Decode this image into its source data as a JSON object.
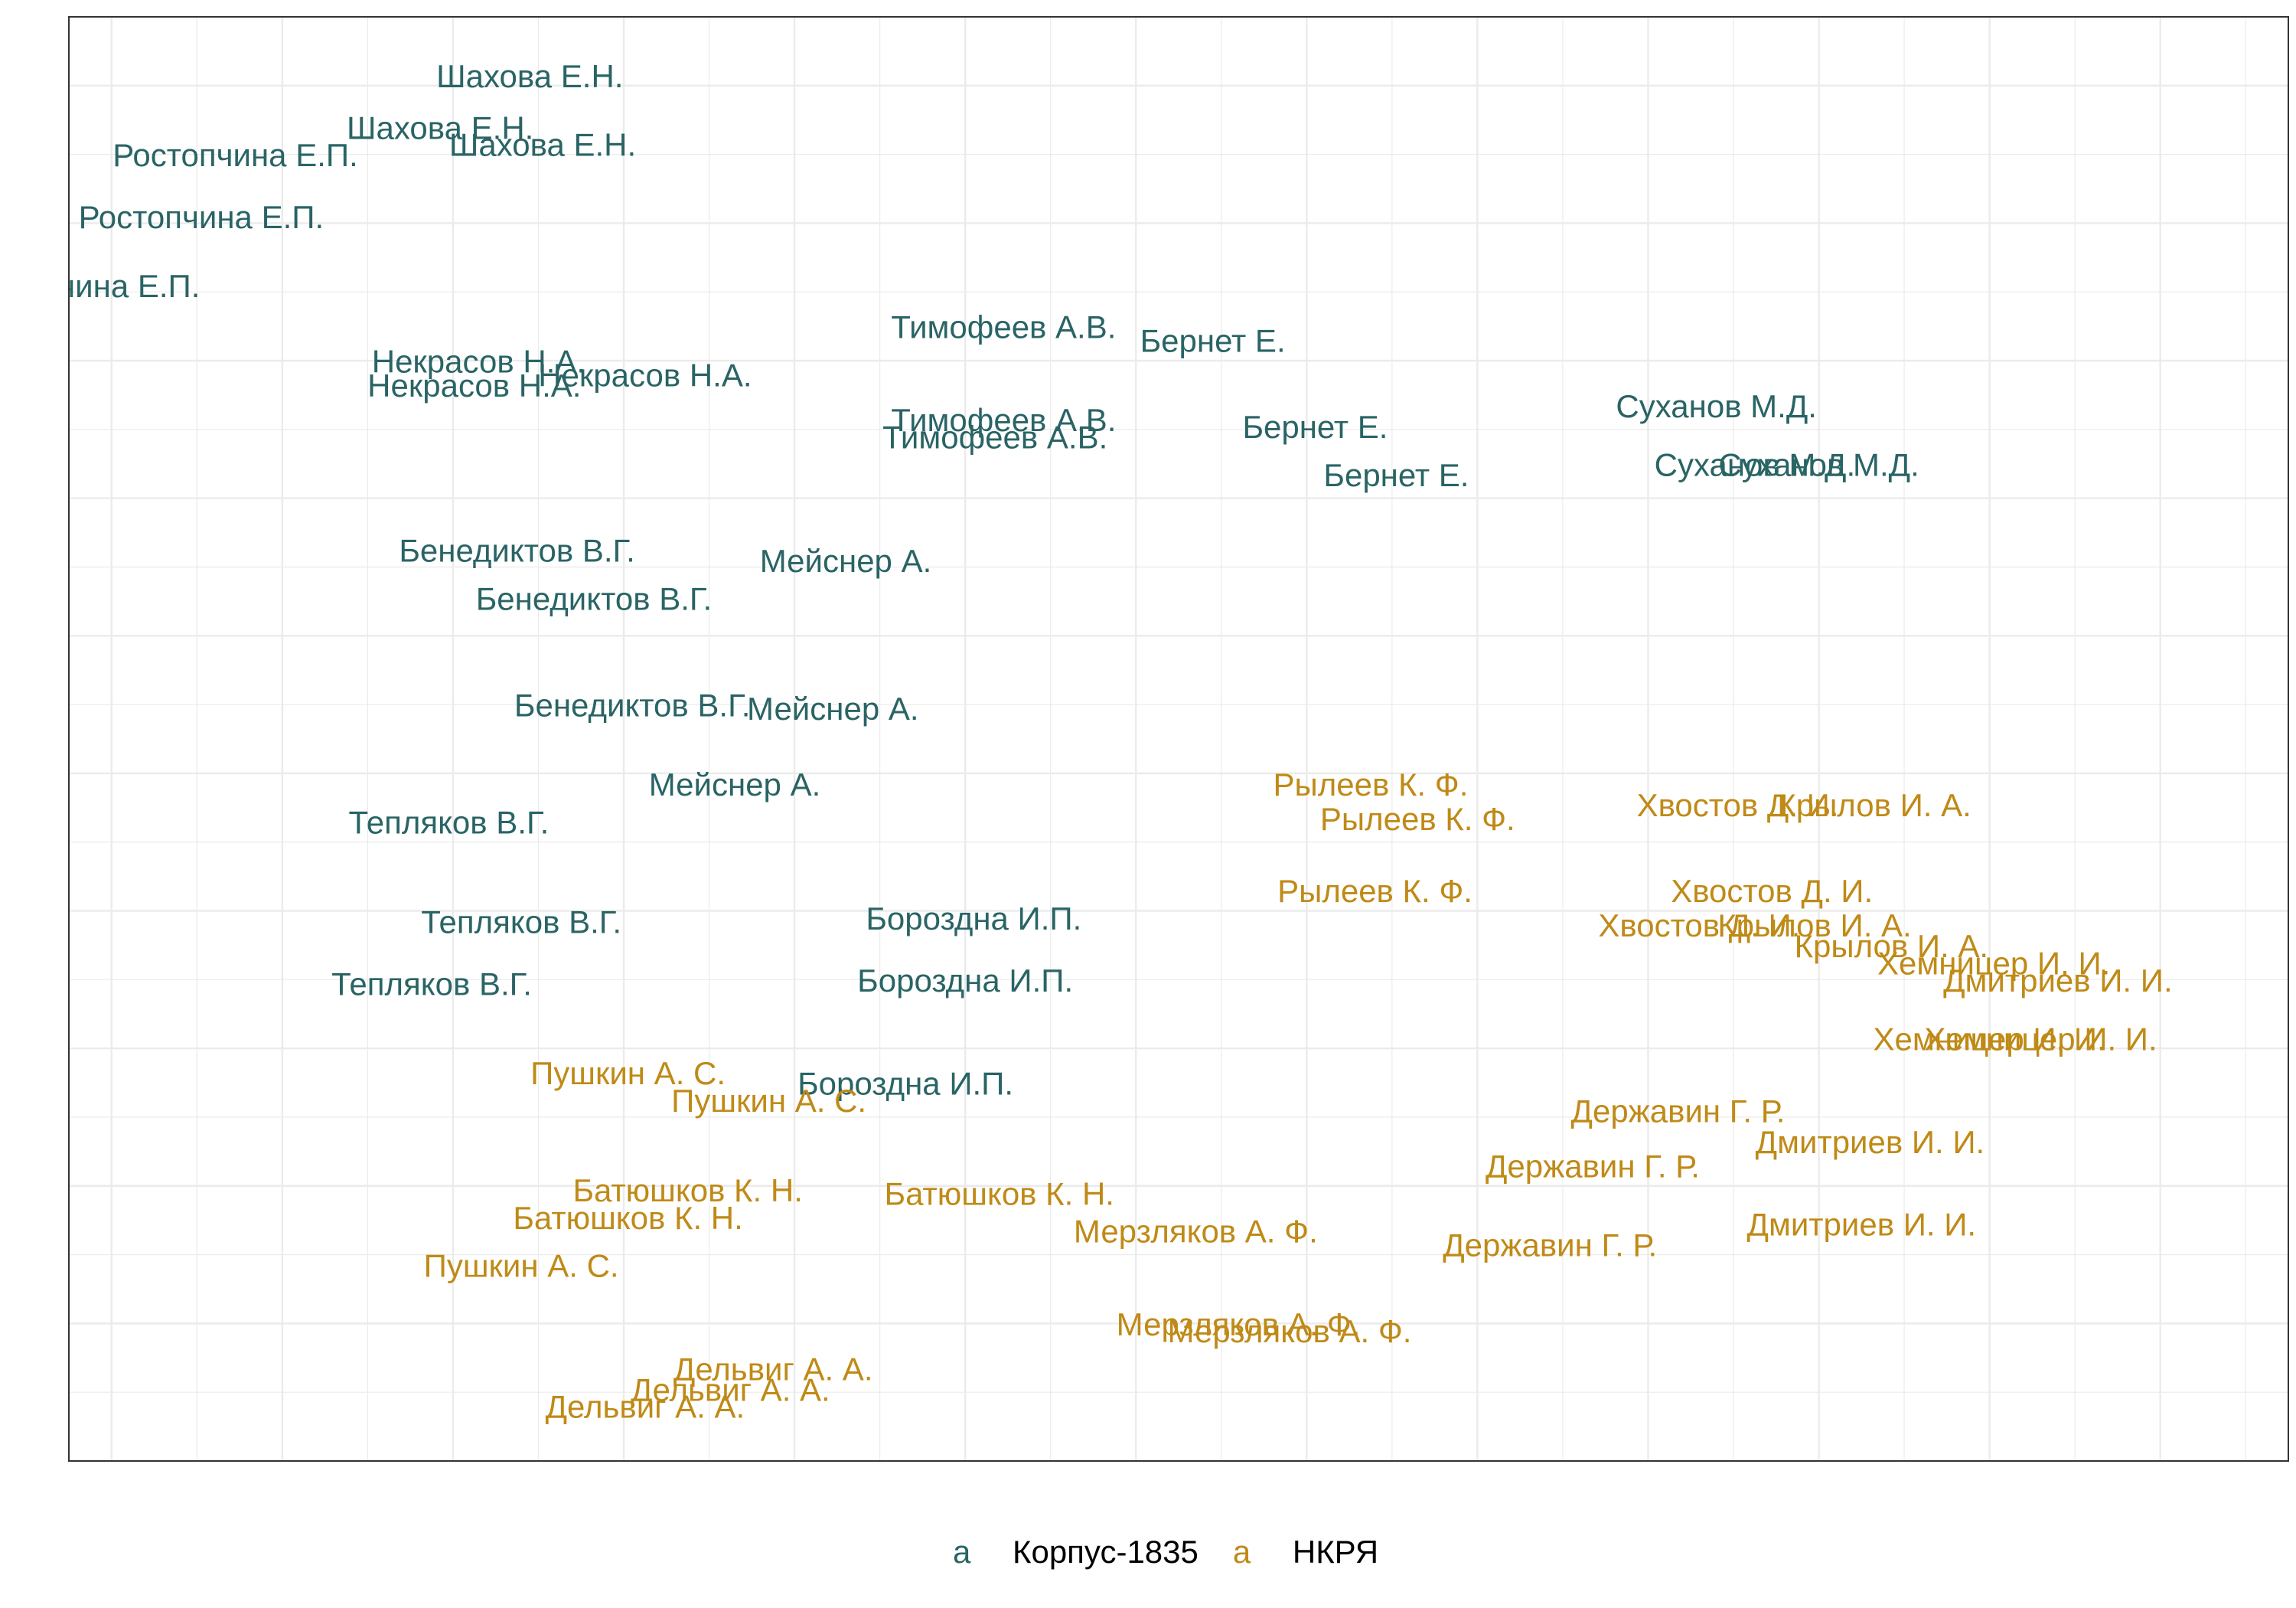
{
  "chart_data": {
    "type": "scatter",
    "title": "",
    "xlabel": "",
    "ylabel": "",
    "xlim": [
      -0.5,
      25.5
    ],
    "ylim": [
      0,
      21
    ],
    "grid": true,
    "legend_position": "bottom",
    "legend_key_glyph": "a",
    "series": [
      {
        "name": "Корпус-1835",
        "color": "#2a6465",
        "points": [
          {
            "label": "Шахова Е.Н.",
            "x": 4.9,
            "y": 20.1
          },
          {
            "label": "Шахова Е.Н.",
            "x": 3.85,
            "y": 19.35
          },
          {
            "label": "Шахова Е.Н.",
            "x": 5.05,
            "y": 19.1
          },
          {
            "label": "Ростопчина Е.П.",
            "x": 1.45,
            "y": 18.95
          },
          {
            "label": "Ростопчина Е.П.",
            "x": 1.05,
            "y": 18.05
          },
          {
            "label": "Ростопчина Е.П.",
            "x": -0.4,
            "y": 17.05
          },
          {
            "label": "Тимофеев А.В.",
            "x": 10.45,
            "y": 16.45
          },
          {
            "label": "Бернет Е.",
            "x": 12.9,
            "y": 16.25
          },
          {
            "label": "Некрасов Н.А.",
            "x": 4.3,
            "y": 15.95
          },
          {
            "label": "Некрасов Н.А.",
            "x": 6.25,
            "y": 15.75
          },
          {
            "label": "Некрасов Н.А.",
            "x": 4.25,
            "y": 15.6
          },
          {
            "label": "Тимофеев А.В.",
            "x": 10.45,
            "y": 15.1
          },
          {
            "label": "Тимофеев А.В.",
            "x": 10.35,
            "y": 14.85
          },
          {
            "label": "Бернет Е.",
            "x": 14.1,
            "y": 15.0
          },
          {
            "label": "Суханов М.Д.",
            "x": 18.8,
            "y": 15.3
          },
          {
            "label": "Суханов М.Д.",
            "x": 19.25,
            "y": 14.45
          },
          {
            "label": "Суханов М.Д.",
            "x": 20.0,
            "y": 14.45
          },
          {
            "label": "Бернет Е.",
            "x": 15.05,
            "y": 14.3
          },
          {
            "label": "Бенедиктов В.Г.",
            "x": 4.75,
            "y": 13.2
          },
          {
            "label": "Мейснер А.",
            "x": 8.6,
            "y": 13.05
          },
          {
            "label": "Бенедиктов В.Г.",
            "x": 5.65,
            "y": 12.5
          },
          {
            "label": "Бенедиктов В.Г.",
            "x": 6.1,
            "y": 10.95
          },
          {
            "label": "Мейснер А.",
            "x": 8.45,
            "y": 10.9
          },
          {
            "label": "Мейснер А.",
            "x": 7.3,
            "y": 9.8
          },
          {
            "label": "Тепляков В.Г.",
            "x": 3.95,
            "y": 9.25
          },
          {
            "label": "Бороздна И.П.",
            "x": 10.1,
            "y": 7.85
          },
          {
            "label": "Тепляков В.Г.",
            "x": 4.8,
            "y": 7.8
          },
          {
            "label": "Бороздна И.П.",
            "x": 10.0,
            "y": 6.95
          },
          {
            "label": "Тепляков В.Г.",
            "x": 3.75,
            "y": 6.9
          },
          {
            "label": "Бороздна И.П.",
            "x": 9.3,
            "y": 5.45
          }
        ]
      },
      {
        "name": "НКРЯ",
        "color": "#bf8a17",
        "points": [
          {
            "label": "Рылеев К. Ф.",
            "x": 14.75,
            "y": 9.8
          },
          {
            "label": "Рылеев К. Ф.",
            "x": 15.3,
            "y": 9.3
          },
          {
            "label": "Хвостов Д. И.",
            "x": 19.05,
            "y": 9.5
          },
          {
            "label": "Крылов И. А.",
            "x": 20.65,
            "y": 9.5
          },
          {
            "label": "Рылеев К. Ф.",
            "x": 14.8,
            "y": 8.25
          },
          {
            "label": "Хвостов Д. И.",
            "x": 19.45,
            "y": 8.25
          },
          {
            "label": "Хвостов Д. И.",
            "x": 18.6,
            "y": 7.75
          },
          {
            "label": "Крылов И. А.",
            "x": 19.95,
            "y": 7.75
          },
          {
            "label": "Крылов И. А.",
            "x": 20.85,
            "y": 7.45
          },
          {
            "label": "Хемницер И. И.",
            "x": 22.05,
            "y": 7.2
          },
          {
            "label": "Дмитриев И. И.",
            "x": 22.8,
            "y": 6.95
          },
          {
            "label": "Хемницер И. И.",
            "x": 22.0,
            "y": 6.1
          },
          {
            "label": "Хемницер И. И.",
            "x": 22.6,
            "y": 6.1
          },
          {
            "label": "Пушкин А. С.",
            "x": 6.05,
            "y": 5.6
          },
          {
            "label": "Пушкин А. С.",
            "x": 7.7,
            "y": 5.2
          },
          {
            "label": "Державин Г. Р.",
            "x": 18.35,
            "y": 5.05
          },
          {
            "label": "Дмитриев И. И.",
            "x": 20.6,
            "y": 4.6
          },
          {
            "label": "Державин Г. Р.",
            "x": 17.35,
            "y": 4.25
          },
          {
            "label": "Батюшков К. Н.",
            "x": 6.75,
            "y": 3.9
          },
          {
            "label": "Батюшков К. Н.",
            "x": 10.4,
            "y": 3.85
          },
          {
            "label": "Батюшков К. Н.",
            "x": 6.05,
            "y": 3.5
          },
          {
            "label": "Мерзляков А. Ф.",
            "x": 12.7,
            "y": 3.3
          },
          {
            "label": "Державин Г. Р.",
            "x": 16.85,
            "y": 3.1
          },
          {
            "label": "Дмитриев И. И.",
            "x": 20.5,
            "y": 3.4
          },
          {
            "label": "Пушкин А. С.",
            "x": 4.8,
            "y": 2.8
          },
          {
            "label": "Мерзляков А. Ф.",
            "x": 13.2,
            "y": 1.95
          },
          {
            "label": "Мерзляков А. Ф.",
            "x": 13.8,
            "y": 1.85
          },
          {
            "label": "Дельвиг А. А.",
            "x": 7.75,
            "y": 1.3
          },
          {
            "label": "Дельвиг А. А.",
            "x": 7.25,
            "y": 1.0
          },
          {
            "label": "Дельвиг А. А.",
            "x": 6.25,
            "y": 0.75
          }
        ]
      }
    ]
  }
}
